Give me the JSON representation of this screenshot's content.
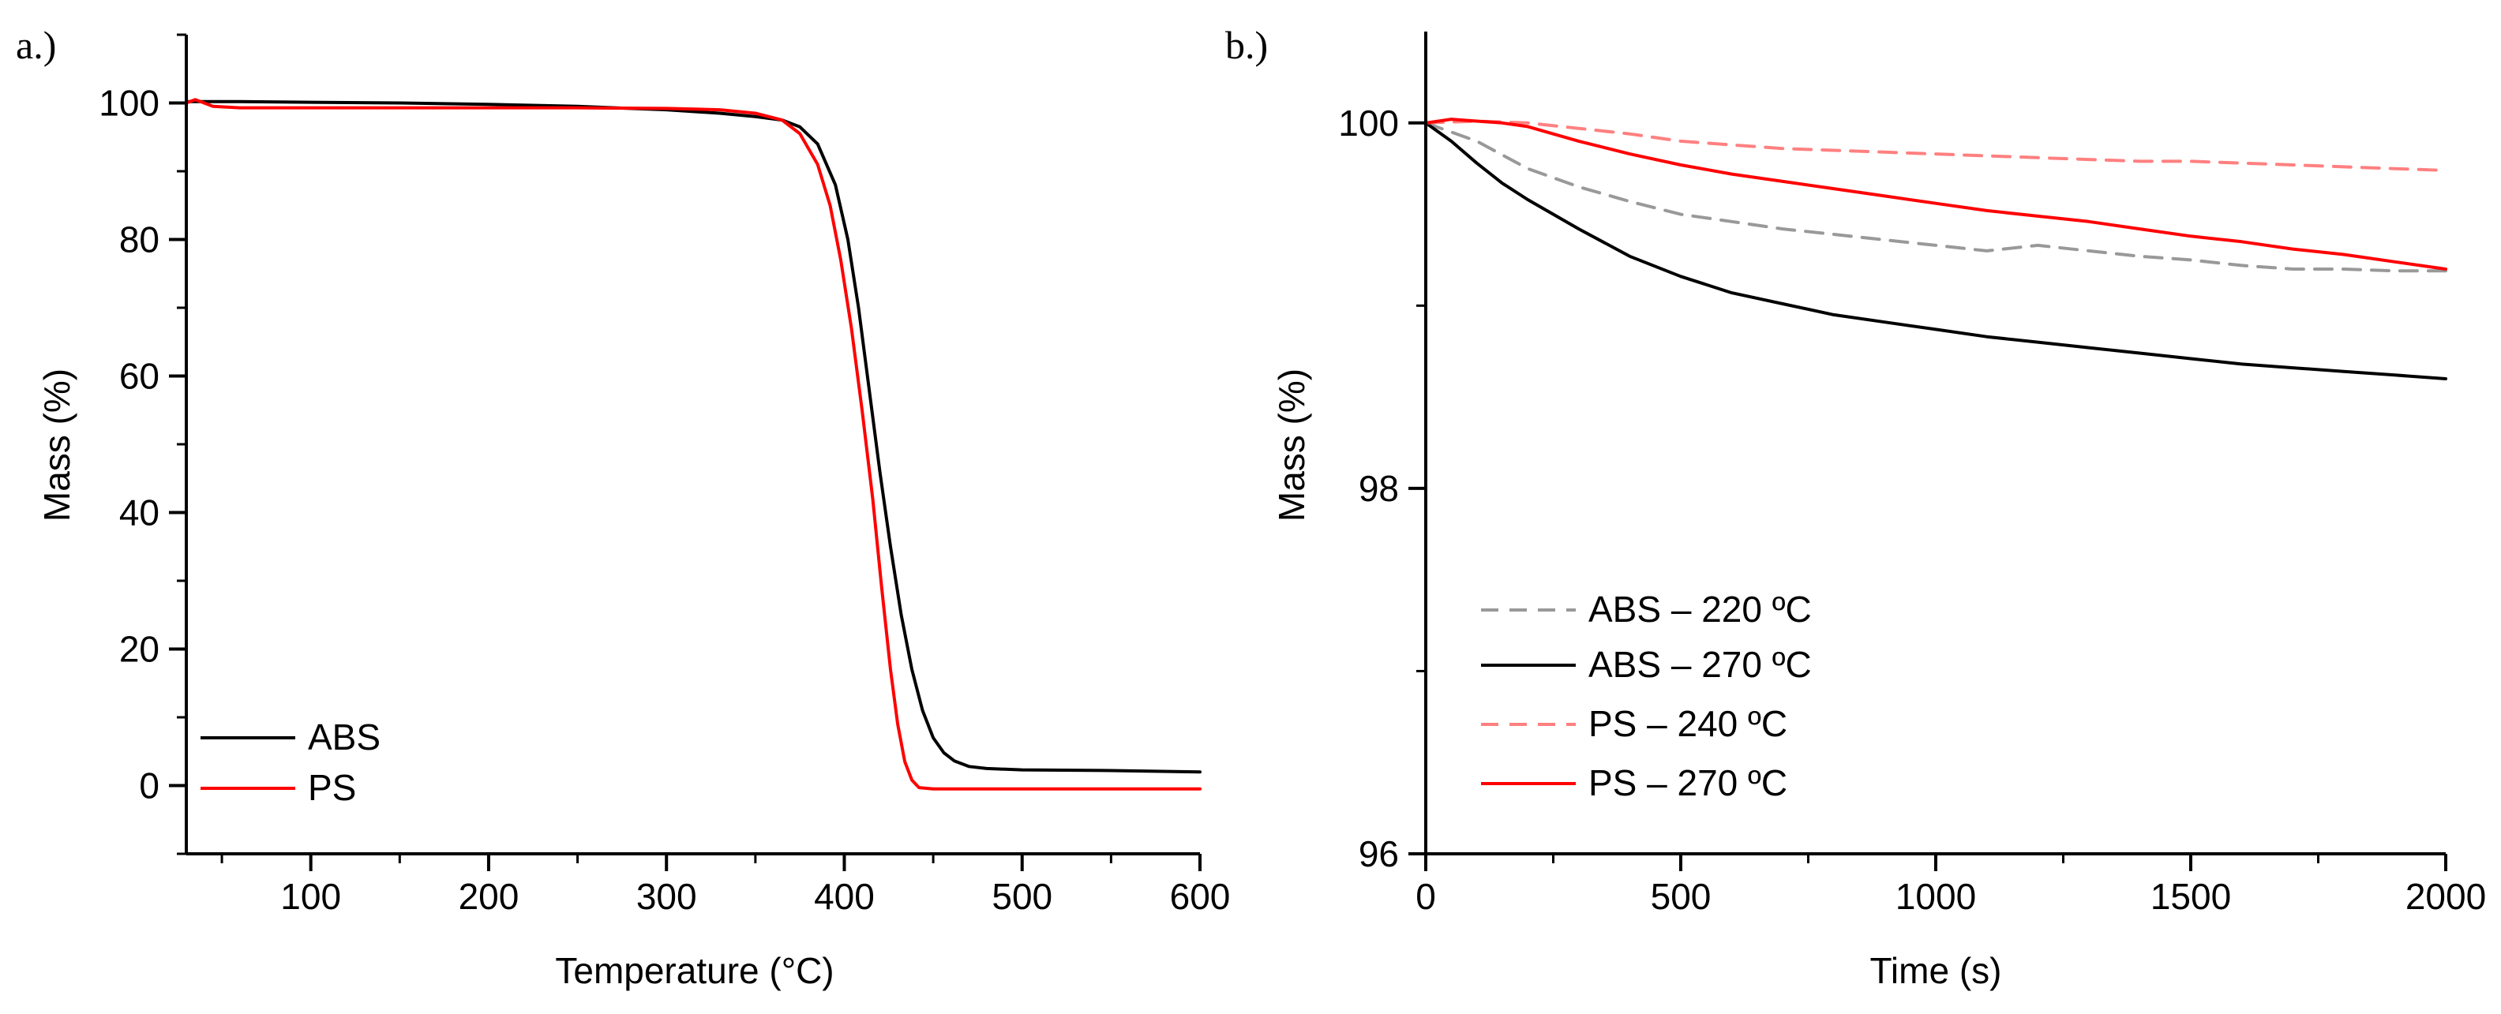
{
  "chart_data": [
    {
      "type": "line",
      "panel_label": "a.)",
      "xlabel": "Temperature (°C)",
      "ylabel": "Mass (%)",
      "xlim": [
        30,
        600
      ],
      "ylim": [
        -10,
        110
      ],
      "xticks": [
        100,
        200,
        300,
        400,
        500,
        600
      ],
      "yticks": [
        0,
        20,
        40,
        60,
        80,
        100
      ],
      "grid": false,
      "legend_position": "bottom-left",
      "series": [
        {
          "name": "ABS",
          "color": "#000000",
          "dash": "solid",
          "x": [
            30,
            60,
            100,
            150,
            200,
            250,
            300,
            330,
            350,
            365,
            375,
            385,
            395,
            402,
            408,
            414,
            420,
            426,
            432,
            438,
            444,
            450,
            456,
            462,
            470,
            480,
            500,
            550,
            600
          ],
          "y": [
            100.2,
            100.2,
            100.1,
            100.0,
            99.8,
            99.5,
            99.0,
            98.5,
            98.0,
            97.5,
            96.5,
            94.0,
            88.0,
            80.0,
            70.0,
            58.0,
            46.0,
            35.0,
            25.0,
            17.0,
            11.0,
            7.0,
            4.8,
            3.6,
            2.8,
            2.5,
            2.3,
            2.2,
            2.0
          ]
        },
        {
          "name": "PS",
          "color": "#ff0000",
          "dash": "solid",
          "x": [
            30,
            35,
            45,
            60,
            100,
            150,
            200,
            250,
            300,
            330,
            350,
            365,
            375,
            385,
            392,
            398,
            404,
            410,
            416,
            421,
            426,
            430,
            434,
            438,
            442,
            450,
            470,
            500,
            600
          ],
          "y": [
            100.0,
            100.5,
            99.5,
            99.3,
            99.3,
            99.3,
            99.3,
            99.3,
            99.2,
            99.0,
            98.5,
            97.5,
            95.5,
            91.0,
            85.0,
            77.0,
            67.0,
            55.0,
            42.0,
            29.0,
            17.0,
            9.0,
            3.5,
            0.8,
            -0.3,
            -0.5,
            -0.5,
            -0.5,
            -0.5
          ]
        }
      ]
    },
    {
      "type": "line",
      "panel_label": "b.)",
      "xlabel": "Time (s)",
      "ylabel": "Mass (%)",
      "xlim": [
        0,
        2000
      ],
      "ylim": [
        96,
        100.5
      ],
      "xticks": [
        0,
        500,
        1000,
        1500,
        2000
      ],
      "yticks": [
        96,
        98,
        100
      ],
      "grid": false,
      "legend_position": "bottom-left",
      "series": [
        {
          "name": "ABS – 220 ºC",
          "color": "#999999",
          "dash": "dashed",
          "x": [
            0,
            100,
            200,
            300,
            400,
            500,
            600,
            700,
            800,
            900,
            1000,
            1100,
            1200,
            1300,
            1400,
            1500,
            1600,
            1700,
            1800,
            1900,
            2000
          ],
          "y": [
            100.0,
            99.9,
            99.75,
            99.65,
            99.57,
            99.5,
            99.46,
            99.42,
            99.39,
            99.36,
            99.33,
            99.3,
            99.33,
            99.3,
            99.27,
            99.25,
            99.22,
            99.2,
            99.2,
            99.19,
            99.19
          ]
        },
        {
          "name": "ABS – 270 ºC",
          "color": "#000000",
          "dash": "solid",
          "x": [
            0,
            50,
            100,
            150,
            200,
            300,
            400,
            500,
            600,
            700,
            800,
            900,
            1000,
            1100,
            1200,
            1300,
            1400,
            1500,
            1600,
            1700,
            1800,
            1900,
            2000
          ],
          "y": [
            100.0,
            99.9,
            99.78,
            99.67,
            99.58,
            99.42,
            99.27,
            99.16,
            99.07,
            99.01,
            98.95,
            98.91,
            98.87,
            98.83,
            98.8,
            98.77,
            98.74,
            98.71,
            98.68,
            98.66,
            98.64,
            98.62,
            98.6
          ]
        },
        {
          "name": "PS – 240 ºC",
          "color": "#ff8080",
          "dash": "dashed",
          "x": [
            0,
            100,
            200,
            300,
            400,
            500,
            600,
            700,
            800,
            900,
            1000,
            1100,
            1200,
            1300,
            1400,
            1500,
            1600,
            1700,
            1800,
            1900,
            2000
          ],
          "y": [
            100.0,
            100.01,
            100.0,
            99.97,
            99.94,
            99.9,
            99.88,
            99.86,
            99.85,
            99.84,
            99.83,
            99.82,
            99.81,
            99.8,
            99.79,
            99.79,
            99.78,
            99.77,
            99.76,
            99.75,
            99.74
          ]
        },
        {
          "name": "PS – 270 ºC",
          "color": "#ff0000",
          "dash": "solid",
          "x": [
            0,
            50,
            100,
            150,
            200,
            300,
            400,
            500,
            600,
            700,
            800,
            900,
            1000,
            1100,
            1200,
            1300,
            1400,
            1500,
            1600,
            1700,
            1800,
            1900,
            2000
          ],
          "y": [
            100.0,
            100.02,
            100.01,
            100.0,
            99.98,
            99.9,
            99.83,
            99.77,
            99.72,
            99.68,
            99.64,
            99.6,
            99.56,
            99.52,
            99.49,
            99.46,
            99.42,
            99.38,
            99.35,
            99.31,
            99.28,
            99.24,
            99.2
          ]
        }
      ]
    }
  ]
}
